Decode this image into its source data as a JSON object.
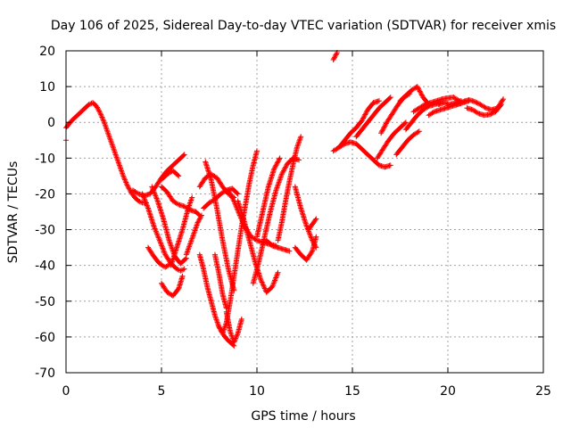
{
  "chart_data": {
    "type": "scatter",
    "title": "Day 106 of 2025, Sidereal Day-to-day VTEC variation (SDTVAR) for receiver xmis",
    "xlabel": "GPS time / hours",
    "ylabel": "SDTVAR / TECUs",
    "xlim": [
      0,
      25
    ],
    "ylim": [
      -70,
      20
    ],
    "xticks": [
      "0",
      "5",
      "10",
      "15",
      "20",
      "25"
    ],
    "yticks": [
      "20",
      "10",
      "0",
      "-10",
      "-20",
      "-30",
      "-40",
      "-50",
      "-60",
      "-70"
    ],
    "grid": true,
    "marker": "plus",
    "color": "#ff0000",
    "segments": [
      {
        "x": [
          0.0,
          0.3,
          0.6,
          0.9,
          1.2,
          1.4,
          1.6,
          1.8,
          2.0,
          2.2,
          2.4,
          2.6,
          2.8,
          3.0,
          3.2,
          3.4,
          3.6,
          3.8,
          4.0,
          4.2
        ],
        "y": [
          -1.5,
          0.5,
          2.0,
          3.5,
          5.0,
          5.5,
          4.5,
          2.5,
          0.0,
          -3.0,
          -6.0,
          -9.0,
          -12.0,
          -15.0,
          -17.5,
          -19.5,
          -21.0,
          -22.0,
          -22.5,
          -22.5
        ]
      },
      {
        "x": [
          0.0
        ],
        "y": [
          -5.0
        ]
      },
      {
        "x": [
          3.5,
          3.8,
          4.1,
          4.4,
          4.7,
          5.0,
          5.3,
          5.6,
          5.9,
          6.2
        ],
        "y": [
          -19.0,
          -20.0,
          -20.5,
          -20.0,
          -18.0,
          -15.5,
          -13.5,
          -12.0,
          -10.5,
          -9.0
        ]
      },
      {
        "x": [
          4.0,
          4.3,
          4.6,
          4.9,
          5.2,
          5.5,
          5.8,
          6.0,
          6.2
        ],
        "y": [
          -20.0,
          -24.0,
          -29.0,
          -33.0,
          -37.0,
          -39.5,
          -41.0,
          -41.5,
          -41.0
        ]
      },
      {
        "x": [
          4.5,
          4.8,
          5.1,
          5.4,
          5.7,
          6.0,
          6.3
        ],
        "y": [
          -18.0,
          -22.0,
          -27.0,
          -33.0,
          -37.5,
          -39.5,
          -38.0
        ]
      },
      {
        "x": [
          4.3,
          4.6,
          4.9,
          5.2,
          5.5
        ],
        "y": [
          -35.0,
          -37.5,
          -39.5,
          -40.5,
          -39.5
        ]
      },
      {
        "x": [
          5.0,
          5.3,
          5.6,
          5.9,
          6.2,
          6.5,
          6.8,
          7.0
        ],
        "y": [
          -18.0,
          -19.5,
          -22.0,
          -23.0,
          -23.5,
          -24.5,
          -25.0,
          -26.0
        ]
      },
      {
        "x": [
          5.0,
          5.3,
          5.6,
          5.9,
          6.1
        ],
        "y": [
          -45.0,
          -47.5,
          -48.5,
          -46.5,
          -43.0
        ]
      },
      {
        "x": [
          5.5,
          5.8,
          6.1,
          6.4,
          6.6
        ],
        "y": [
          -40.0,
          -35.0,
          -30.0,
          -24.0,
          -21.0
        ]
      },
      {
        "x": [
          5.0,
          5.3,
          5.6,
          5.9
        ],
        "y": [
          -16.0,
          -14.5,
          -13.5,
          -15.0
        ]
      },
      {
        "x": [
          6.3,
          6.5,
          6.7,
          6.9,
          7.1
        ],
        "y": [
          -37.0,
          -34.0,
          -31.0,
          -28.0,
          -26.0
        ]
      },
      {
        "x": [
          7.0,
          7.2,
          7.4,
          7.6,
          7.8,
          8.0,
          8.2,
          8.4,
          8.6,
          8.8
        ],
        "y": [
          -37.0,
          -41.0,
          -46.0,
          -50.0,
          -54.0,
          -57.0,
          -59.0,
          -60.5,
          -61.5,
          -62.5
        ]
      },
      {
        "x": [
          7.0,
          7.3,
          7.6,
          7.9,
          8.2,
          8.5,
          8.8
        ],
        "y": [
          -18.0,
          -15.5,
          -14.5,
          -15.5,
          -18.0,
          -20.0,
          -21.0
        ]
      },
      {
        "x": [
          7.3,
          7.6,
          7.9,
          8.2,
          8.5,
          8.8
        ],
        "y": [
          -11.0,
          -16.0,
          -24.0,
          -33.0,
          -41.0,
          -47.0
        ]
      },
      {
        "x": [
          7.2,
          7.5,
          7.8,
          8.1,
          8.4,
          8.7,
          9.0
        ],
        "y": [
          -24.0,
          -22.5,
          -21.5,
          -20.0,
          -19.0,
          -18.5,
          -20.0
        ]
      },
      {
        "x": [
          7.8,
          8.0,
          8.2,
          8.4
        ],
        "y": [
          -37.0,
          -42.0,
          -48.0,
          -52.0
        ]
      },
      {
        "x": [
          8.0,
          8.2,
          8.4,
          8.6,
          8.8,
          9.0,
          9.2,
          9.4,
          9.6,
          9.8,
          10.0
        ],
        "y": [
          -57.0,
          -59.0,
          -56.0,
          -50.0,
          -43.0,
          -36.0,
          -29.0,
          -23.0,
          -17.0,
          -12.0,
          -8.0
        ]
      },
      {
        "x": [
          8.4,
          8.6,
          8.8,
          9.0,
          9.2
        ],
        "y": [
          -53.0,
          -58.5,
          -61.5,
          -59.0,
          -55.0
        ]
      },
      {
        "x": [
          8.5,
          8.8,
          9.1,
          9.4,
          9.7,
          10.0,
          10.3,
          10.6,
          11.0
        ],
        "y": [
          -19.0,
          -22.0,
          -26.0,
          -29.5,
          -32.0,
          -33.0,
          -33.5,
          -34.0,
          -34.5
        ]
      },
      {
        "x": [
          9.0,
          9.3,
          9.6,
          9.9,
          10.2,
          10.5,
          10.8,
          11.1
        ],
        "y": [
          -22.0,
          -27.0,
          -33.0,
          -39.0,
          -44.0,
          -47.5,
          -46.0,
          -42.0
        ]
      },
      {
        "x": [
          9.8,
          10.1,
          10.4,
          10.7,
          11.0,
          11.3,
          11.6,
          11.9,
          12.2
        ],
        "y": [
          -45.0,
          -39.0,
          -32.0,
          -25.0,
          -19.0,
          -14.5,
          -11.5,
          -10.0,
          -10.5
        ]
      },
      {
        "x": [
          10.0,
          10.3,
          10.6,
          10.9,
          11.2
        ],
        "y": [
          -32.0,
          -25.0,
          -18.0,
          -13.0,
          -10.0
        ]
      },
      {
        "x": [
          10.5,
          10.8,
          11.1,
          11.4,
          11.7
        ],
        "y": [
          -33.0,
          -34.5,
          -35.0,
          -35.5,
          -36.0
        ]
      },
      {
        "x": [
          11.1,
          11.3,
          11.5,
          11.7,
          11.9,
          12.1,
          12.3
        ],
        "y": [
          -33.0,
          -28.0,
          -22.0,
          -16.5,
          -11.5,
          -7.0,
          -4.0
        ]
      },
      {
        "x": [
          12.0,
          12.3,
          12.6,
          12.9,
          13.1
        ],
        "y": [
          -18.0,
          -24.0,
          -29.0,
          -33.0,
          -35.0
        ]
      },
      {
        "x": [
          12.0,
          12.3,
          12.6,
          12.9,
          13.1
        ],
        "y": [
          -35.0,
          -37.0,
          -38.5,
          -36.0,
          -32.0
        ]
      },
      {
        "x": [
          12.7,
          12.9,
          13.1
        ],
        "y": [
          -30.0,
          -28.5,
          -27.0
        ]
      },
      {
        "x": [
          14.0,
          14.1,
          14.2
        ],
        "y": [
          17.5,
          18.5,
          19.5
        ]
      },
      {
        "x": [
          14.0,
          14.3,
          14.6,
          14.9,
          15.2,
          15.5,
          15.8,
          16.1,
          16.4,
          16.7,
          17.0
        ],
        "y": [
          -8.0,
          -7.0,
          -6.0,
          -5.5,
          -6.0,
          -7.5,
          -9.0,
          -10.5,
          -12.0,
          -12.5,
          -12.0
        ]
      },
      {
        "x": [
          14.3,
          14.6,
          14.9,
          15.2,
          15.5,
          15.8,
          16.1,
          16.4
        ],
        "y": [
          -7.0,
          -5.0,
          -3.0,
          -1.5,
          0.5,
          3.5,
          5.5,
          6.0
        ]
      },
      {
        "x": [
          15.2,
          15.5,
          15.8,
          16.1,
          16.4,
          16.7,
          17.0
        ],
        "y": [
          -4.0,
          -2.0,
          0.0,
          2.0,
          4.0,
          5.5,
          7.0
        ]
      },
      {
        "x": [
          16.3,
          16.6,
          16.9,
          17.2,
          17.5,
          17.8
        ],
        "y": [
          -10.0,
          -7.5,
          -5.0,
          -3.0,
          -1.5,
          0.0
        ]
      },
      {
        "x": [
          16.5,
          16.8,
          17.1,
          17.4,
          17.7,
          18.0
        ],
        "y": [
          -3.0,
          0.0,
          2.5,
          5.0,
          7.0,
          8.0
        ]
      },
      {
        "x": [
          17.3,
          17.6,
          17.9,
          18.2,
          18.5
        ],
        "y": [
          -9.0,
          -7.0,
          -5.0,
          -3.5,
          -2.5
        ]
      },
      {
        "x": [
          17.5,
          17.8,
          18.1,
          18.4,
          18.7,
          19.0
        ],
        "y": [
          6.0,
          7.5,
          9.0,
          10.0,
          7.0,
          5.0
        ]
      },
      {
        "x": [
          17.8,
          18.1,
          18.4,
          18.7,
          19.0,
          19.3,
          19.6
        ],
        "y": [
          -2.0,
          0.0,
          2.0,
          3.5,
          4.5,
          5.0,
          5.5
        ]
      },
      {
        "x": [
          18.2,
          18.5,
          18.8,
          19.1,
          19.4,
          19.7,
          20.0,
          20.3,
          20.6
        ],
        "y": [
          3.0,
          4.0,
          5.0,
          5.5,
          6.0,
          6.5,
          6.8,
          7.0,
          6.0
        ]
      },
      {
        "x": [
          19.0,
          19.3,
          19.6,
          19.9,
          20.2,
          20.5,
          20.8,
          21.1
        ],
        "y": [
          2.0,
          3.0,
          3.5,
          4.0,
          4.5,
          5.0,
          5.5,
          6.0
        ]
      },
      {
        "x": [
          20.5,
          20.8,
          21.1,
          21.4,
          21.7,
          22.0,
          22.3,
          22.6,
          22.9
        ],
        "y": [
          5.0,
          5.8,
          6.3,
          5.8,
          5.0,
          4.0,
          3.5,
          4.0,
          6.5
        ]
      },
      {
        "x": [
          21.0,
          21.3,
          21.6,
          21.9,
          22.2,
          22.5,
          22.8
        ],
        "y": [
          4.0,
          3.5,
          2.5,
          2.0,
          2.2,
          3.0,
          5.0
        ]
      },
      {
        "x": [
          19.5,
          19.8,
          20.1,
          20.4,
          20.7
        ],
        "y": [
          5.0,
          5.5,
          5.0,
          5.5,
          6.0
        ]
      }
    ]
  }
}
